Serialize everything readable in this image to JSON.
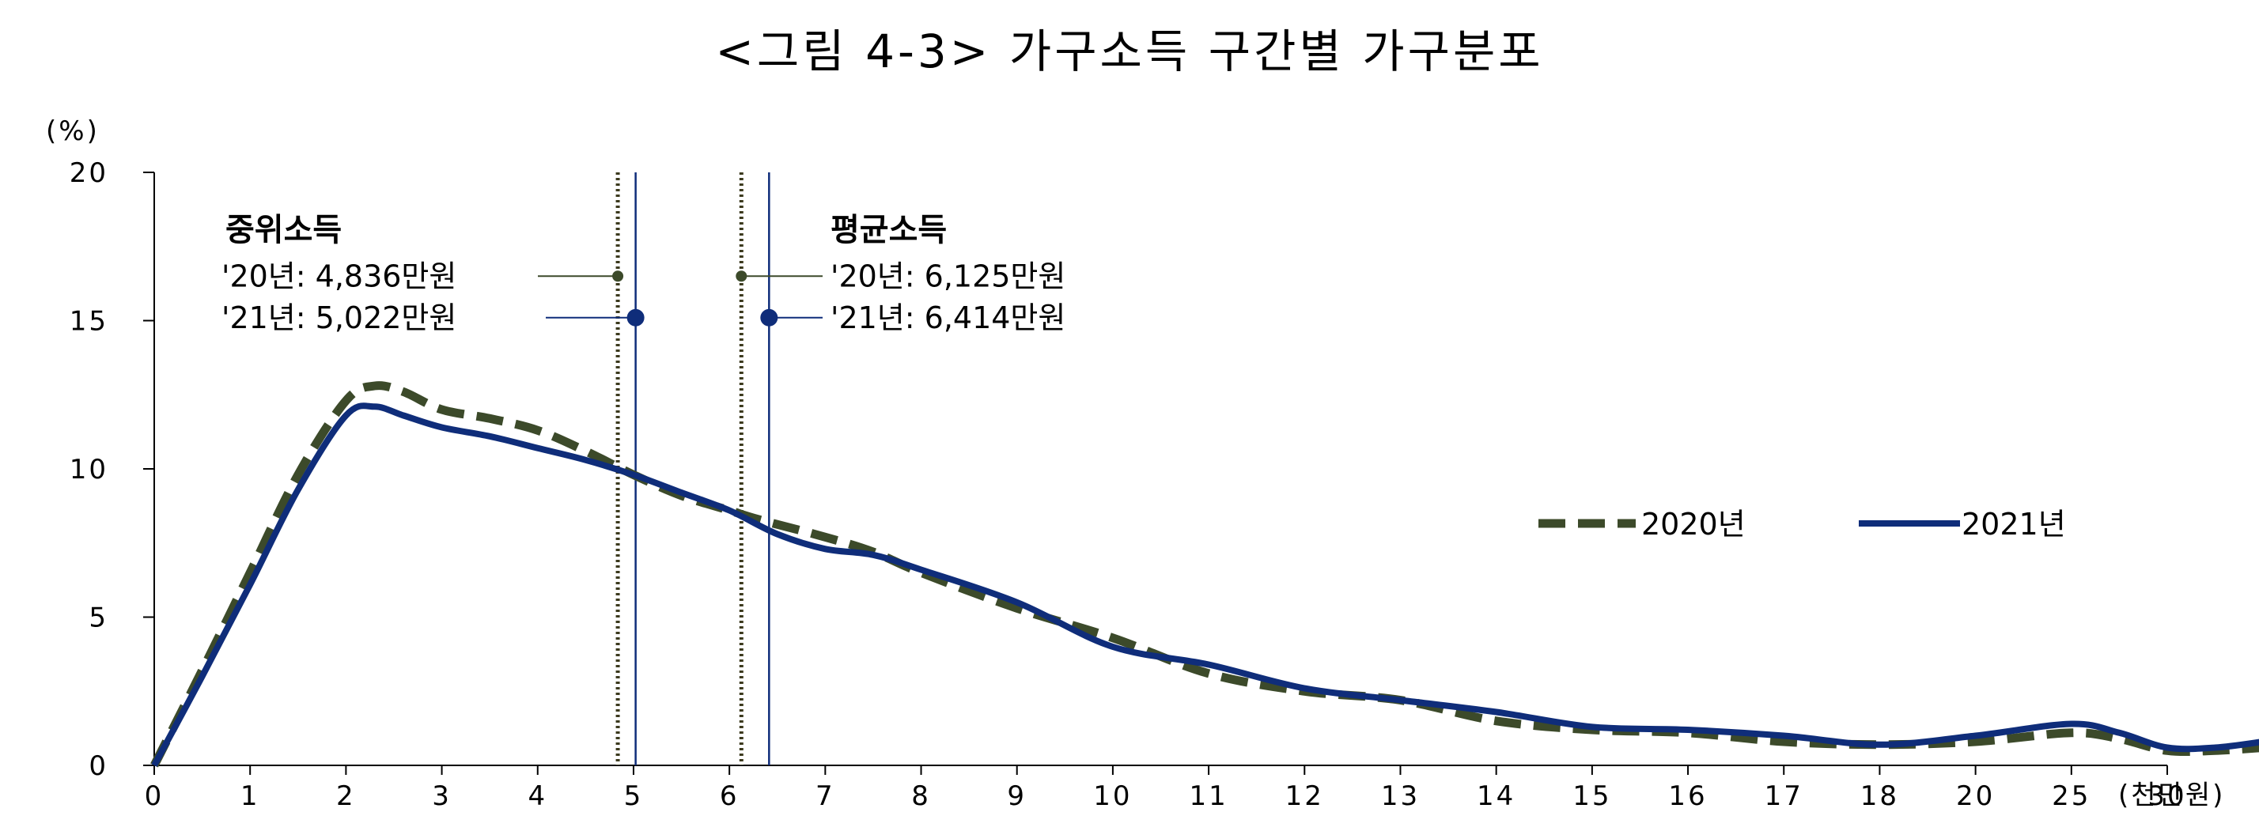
{
  "chart_data": {
    "type": "line",
    "title": "<그림 4-3> 가구소득 구간별 가구분포",
    "ylabel": "(%)",
    "xlabel": "(천만원)",
    "ylim": [
      0,
      20
    ],
    "yticks": [
      "0",
      "5",
      "10",
      "15",
      "20"
    ],
    "x_tick_labels": [
      "0",
      "1",
      "2",
      "3",
      "4",
      "5",
      "6",
      "7",
      "8",
      "9",
      "10",
      "11",
      "12",
      "13",
      "14",
      "15",
      "16",
      "17",
      "18",
      "20",
      "25",
      "30"
    ],
    "grid": false,
    "legend_position": "right",
    "series": [
      {
        "name": "2020년",
        "color": "#3c4a2a",
        "style": "dashed",
        "points": [
          [
            0,
            0
          ],
          [
            0.5,
            3.2
          ],
          [
            1,
            6.5
          ],
          [
            1.5,
            9.8
          ],
          [
            2,
            12.3
          ],
          [
            2.3,
            12.8
          ],
          [
            2.6,
            12.6
          ],
          [
            3,
            12.0
          ],
          [
            3.5,
            11.7
          ],
          [
            4,
            11.3
          ],
          [
            4.5,
            10.6
          ],
          [
            5,
            9.8
          ],
          [
            5.5,
            9.1
          ],
          [
            6,
            8.6
          ],
          [
            6.3,
            8.3
          ],
          [
            7,
            7.7
          ],
          [
            7.5,
            7.2
          ],
          [
            8,
            6.5
          ],
          [
            9,
            5.3
          ],
          [
            10,
            4.3
          ],
          [
            11,
            3.1
          ],
          [
            12,
            2.5
          ],
          [
            13,
            2.2
          ],
          [
            14,
            1.5
          ],
          [
            15,
            1.2
          ],
          [
            16,
            1.1
          ],
          [
            17,
            0.8
          ],
          [
            18,
            0.7
          ],
          [
            19,
            0.8
          ],
          [
            20,
            1.1
          ],
          [
            20.5,
            0.9
          ],
          [
            21,
            0.5
          ],
          [
            21.5,
            0.5
          ],
          [
            22,
            0.6
          ]
        ]
      },
      {
        "name": "2021년",
        "color": "#0f2d7a",
        "style": "solid",
        "points": [
          [
            0,
            0
          ],
          [
            0.5,
            3.0
          ],
          [
            1,
            6.1
          ],
          [
            1.5,
            9.3
          ],
          [
            2,
            11.8
          ],
          [
            2.3,
            12.1
          ],
          [
            2.6,
            11.8
          ],
          [
            3,
            11.4
          ],
          [
            3.5,
            11.1
          ],
          [
            4,
            10.7
          ],
          [
            4.5,
            10.3
          ],
          [
            5,
            9.8
          ],
          [
            5.5,
            9.2
          ],
          [
            6,
            8.6
          ],
          [
            6.5,
            7.8
          ],
          [
            7,
            7.3
          ],
          [
            7.5,
            7.1
          ],
          [
            8,
            6.6
          ],
          [
            9,
            5.5
          ],
          [
            10,
            4.0
          ],
          [
            11,
            3.4
          ],
          [
            12,
            2.6
          ],
          [
            13,
            2.2
          ],
          [
            14,
            1.8
          ],
          [
            15,
            1.3
          ],
          [
            16,
            1.2
          ],
          [
            17,
            1.0
          ],
          [
            18,
            0.7
          ],
          [
            19,
            1.0
          ],
          [
            20,
            1.4
          ],
          [
            20.5,
            1.1
          ],
          [
            21,
            0.6
          ],
          [
            21.5,
            0.6
          ],
          [
            22,
            0.8
          ]
        ]
      }
    ],
    "annotations": {
      "median": {
        "label": "중위소득",
        "line_2020": "'20년: 4,836만원",
        "line_2021": "'21년: 5,022만원",
        "x_2020": 4.836,
        "x_2021": 5.022,
        "marker_y_2020": 16.5,
        "marker_y_2021": 15.1
      },
      "mean": {
        "label": "평균소득",
        "line_2020": "'20년: 6,125만원",
        "line_2021": "'21년: 6,414만원",
        "x_2020": 6.125,
        "x_2021": 6.414,
        "marker_y_2020": 16.5,
        "marker_y_2021": 15.1
      }
    }
  }
}
